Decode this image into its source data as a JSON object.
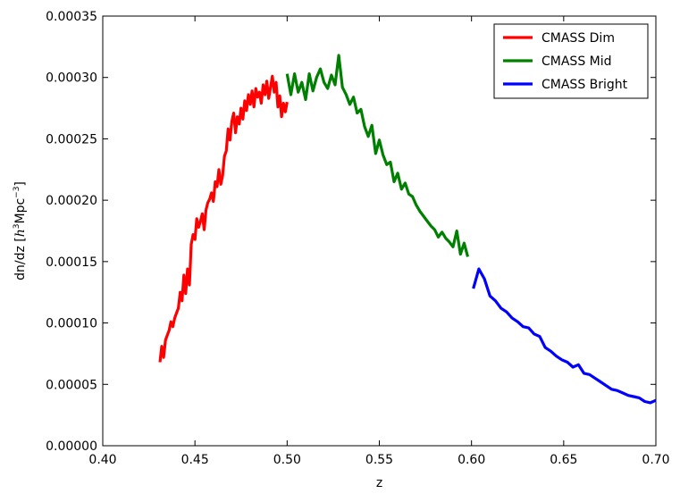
{
  "chart_data": {
    "type": "line",
    "title": "",
    "xlabel": "z",
    "ylabel": "dn/dz [h^3 Mpc^-3]",
    "ylabel_parts": {
      "prefix": "dn/dz [",
      "h": "h",
      "h_exp": "3",
      "mid": "Mpc",
      "mpc_exp": "−3",
      "suffix": "]"
    },
    "xlim": [
      0.4,
      0.7
    ],
    "ylim": [
      0.0,
      0.00035
    ],
    "x_ticks": [
      0.4,
      0.45,
      0.5,
      0.55,
      0.6,
      0.65,
      0.7
    ],
    "x_tick_labels": [
      "0.40",
      "0.45",
      "0.50",
      "0.55",
      "0.60",
      "0.65",
      "0.70"
    ],
    "y_ticks": [
      0.0,
      5e-05,
      0.0001,
      0.00015,
      0.0002,
      0.00025,
      0.0003,
      0.00035
    ],
    "y_tick_labels": [
      "0.00000",
      "0.00005",
      "0.00010",
      "0.00015",
      "0.00020",
      "0.00025",
      "0.00030",
      "0.00035"
    ],
    "grid": false,
    "legend_position": "top-right",
    "series": [
      {
        "name": "CMASS Dim",
        "color": "#ff0000",
        "x": [
          0.431,
          0.432,
          0.433,
          0.434,
          0.435,
          0.436,
          0.437,
          0.438,
          0.439,
          0.44,
          0.441,
          0.442,
          0.443,
          0.444,
          0.445,
          0.446,
          0.447,
          0.448,
          0.449,
          0.45,
          0.451,
          0.452,
          0.453,
          0.454,
          0.455,
          0.456,
          0.457,
          0.458,
          0.459,
          0.46,
          0.461,
          0.462,
          0.463,
          0.464,
          0.465,
          0.466,
          0.467,
          0.468,
          0.469,
          0.47,
          0.471,
          0.472,
          0.473,
          0.474,
          0.475,
          0.476,
          0.477,
          0.478,
          0.479,
          0.48,
          0.481,
          0.482,
          0.483,
          0.484,
          0.485,
          0.486,
          0.487,
          0.488,
          0.489,
          0.49,
          0.491,
          0.492,
          0.493,
          0.494,
          0.495,
          0.496,
          0.497,
          0.498,
          0.499,
          0.5
        ],
        "y": [
          6.8e-05,
          8.1e-05,
          7.2e-05,
          8.6e-05,
          9e-05,
          9.4e-05,
          0.000101,
          9.7e-05,
          0.000104,
          0.000108,
          0.000112,
          0.000125,
          0.000118,
          0.000139,
          0.000124,
          0.000144,
          0.000131,
          0.000164,
          0.000172,
          0.000168,
          0.000185,
          0.000178,
          0.000183,
          0.000189,
          0.000176,
          0.000192,
          0.000198,
          0.000201,
          0.000206,
          0.000199,
          0.000215,
          0.000211,
          0.000225,
          0.000213,
          0.00022,
          0.000236,
          0.00024,
          0.000258,
          0.000249,
          0.000264,
          0.000271,
          0.000255,
          0.000268,
          0.000262,
          0.000275,
          0.000266,
          0.000281,
          0.000273,
          0.000286,
          0.000278,
          0.000289,
          0.000276,
          0.000291,
          0.000284,
          0.000288,
          0.000279,
          0.000294,
          0.000286,
          0.000297,
          0.000283,
          0.000292,
          0.000301,
          0.000288,
          0.000296,
          0.000276,
          0.000285,
          0.000268,
          0.000279,
          0.000272,
          0.00028
        ]
      },
      {
        "name": "CMASS Mid",
        "color": "#008000",
        "x": [
          0.5,
          0.502,
          0.504,
          0.506,
          0.508,
          0.51,
          0.512,
          0.514,
          0.516,
          0.518,
          0.52,
          0.522,
          0.524,
          0.526,
          0.528,
          0.53,
          0.532,
          0.534,
          0.536,
          0.538,
          0.54,
          0.542,
          0.544,
          0.546,
          0.548,
          0.55,
          0.552,
          0.554,
          0.556,
          0.558,
          0.56,
          0.562,
          0.564,
          0.566,
          0.568,
          0.57,
          0.572,
          0.574,
          0.576,
          0.578,
          0.58,
          0.582,
          0.584,
          0.586,
          0.588,
          0.59,
          0.592,
          0.594,
          0.596,
          0.598
        ],
        "y": [
          0.000303,
          0.000286,
          0.000303,
          0.000288,
          0.000296,
          0.000282,
          0.000303,
          0.000289,
          0.0003,
          0.000307,
          0.000296,
          0.000291,
          0.000302,
          0.000294,
          0.000318,
          0.000292,
          0.000286,
          0.000278,
          0.000284,
          0.000271,
          0.000274,
          0.00026,
          0.000252,
          0.000261,
          0.000238,
          0.000249,
          0.000237,
          0.000229,
          0.000231,
          0.000215,
          0.000222,
          0.000209,
          0.000214,
          0.000205,
          0.000203,
          0.000196,
          0.000191,
          0.000187,
          0.000183,
          0.000179,
          0.000176,
          0.00017,
          0.000174,
          0.000169,
          0.000166,
          0.000162,
          0.000175,
          0.000156,
          0.000165,
          0.000154
        ]
      },
      {
        "name": "CMASS Bright",
        "color": "#0000ff",
        "x": [
          0.601,
          0.604,
          0.607,
          0.61,
          0.613,
          0.616,
          0.619,
          0.622,
          0.625,
          0.628,
          0.631,
          0.634,
          0.637,
          0.64,
          0.643,
          0.646,
          0.649,
          0.652,
          0.655,
          0.658,
          0.661,
          0.664,
          0.667,
          0.67,
          0.673,
          0.676,
          0.679,
          0.682,
          0.685,
          0.688,
          0.691,
          0.694,
          0.697,
          0.7
        ],
        "y": [
          0.000128,
          0.000144,
          0.000136,
          0.000122,
          0.000118,
          0.000112,
          0.000109,
          0.000104,
          0.000101,
          9.7e-05,
          9.6e-05,
          9.1e-05,
          8.9e-05,
          8e-05,
          7.7e-05,
          7.3e-05,
          7e-05,
          6.8e-05,
          6.4e-05,
          6.6e-05,
          5.9e-05,
          5.8e-05,
          5.5e-05,
          5.2e-05,
          4.9e-05,
          4.6e-05,
          4.5e-05,
          4.3e-05,
          4.1e-05,
          4e-05,
          3.9e-05,
          3.6e-05,
          3.5e-05,
          3.7e-05
        ]
      }
    ]
  }
}
